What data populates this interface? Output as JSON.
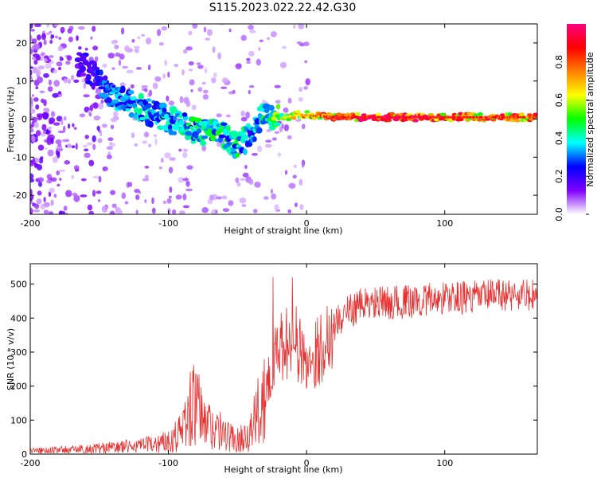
{
  "title": "S115.2023.022.22.42.G30",
  "chart_data": [
    {
      "type": "heatmap",
      "xlabel": "Height of straight line (km)",
      "ylabel": "Frequency (Hz)",
      "xlim": [
        -200,
        167
      ],
      "ylim": [
        -25,
        25
      ],
      "xticks": [
        -200,
        -100,
        0,
        100
      ],
      "yticks": [
        -20,
        -10,
        0,
        10,
        20
      ],
      "colorbar": {
        "label": "Normalized spectral amplitude",
        "range": [
          0,
          1
        ],
        "ticks": [
          0.0,
          0.2,
          0.4,
          0.6,
          0.8
        ],
        "colormap": [
          "#ffffff",
          "#8000ff",
          "#0000ff",
          "#00ffff",
          "#00ff00",
          "#ffff00",
          "#ff8000",
          "#ff0000",
          "#ff0080"
        ]
      },
      "ridge": {
        "x": [
          -160,
          -140,
          -120,
          -100,
          -80,
          -60,
          -50,
          -40,
          -30,
          -20,
          -10,
          0,
          20,
          50,
          100,
          167
        ],
        "freq": [
          14,
          6,
          3,
          0,
          -3,
          -4,
          -7,
          -4,
          2,
          0,
          1,
          1,
          0.5,
          0.5,
          0.5,
          0.5
        ],
        "amplitude": [
          0.2,
          0.35,
          0.4,
          0.4,
          0.45,
          0.45,
          0.45,
          0.35,
          0.45,
          0.6,
          0.65,
          0.75,
          0.85,
          0.95,
          0.9,
          0.8
        ]
      },
      "grid": false
    },
    {
      "type": "line",
      "xlabel": "Height of straight line (km)",
      "ylabel": "SNR (10 * v/v)",
      "xlim": [
        -200,
        167
      ],
      "ylim": [
        0,
        560
      ],
      "xticks": [
        -200,
        -100,
        0,
        100
      ],
      "yticks": [
        0,
        100,
        200,
        300,
        400,
        500
      ],
      "series": [
        {
          "color": "#e83030",
          "x": [
            -200,
            -180,
            -160,
            -140,
            -120,
            -110,
            -100,
            -90,
            -85,
            -80,
            -75,
            -70,
            -60,
            -50,
            -40,
            -35,
            -30,
            -25,
            -20,
            -15,
            -10,
            -5,
            0,
            10,
            20,
            30,
            40,
            60,
            80,
            100,
            120,
            140,
            167
          ],
          "values": [
            10,
            12,
            15,
            20,
            25,
            30,
            40,
            70,
            130,
            150,
            95,
            85,
            60,
            40,
            70,
            120,
            200,
            260,
            300,
            330,
            360,
            300,
            270,
            310,
            380,
            420,
            440,
            445,
            450,
            460,
            460,
            470,
            465
          ]
        }
      ],
      "grid": false
    }
  ]
}
